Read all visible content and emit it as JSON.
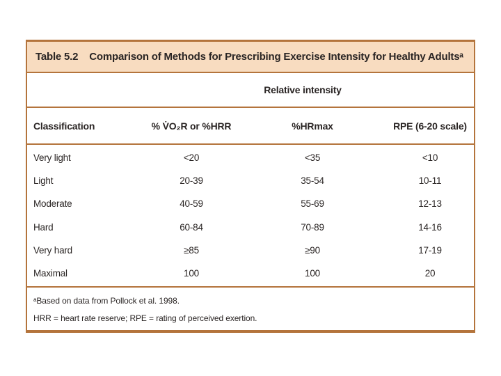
{
  "page": {
    "background": "#ffffff"
  },
  "table": {
    "title_label": "Table 5.2",
    "title_text": "Comparison of Methods for Prescribing Exercise Intensity for Healthy Adultsᵃ",
    "relative_intensity_header": "Relative intensity",
    "columns": [
      "Classification",
      "% V̇O₂R or %HRR",
      "%HRmax",
      "RPE (6-20 scale)"
    ],
    "rows": [
      {
        "classification": "Very light",
        "vo2r_hrr": "<20",
        "hrmax": "<35",
        "rpe": "<10"
      },
      {
        "classification": "Light",
        "vo2r_hrr": "20-39",
        "hrmax": "35-54",
        "rpe": "10-11"
      },
      {
        "classification": "Moderate",
        "vo2r_hrr": "40-59",
        "hrmax": "55-69",
        "rpe": "12-13"
      },
      {
        "classification": "Hard",
        "vo2r_hrr": "60-84",
        "hrmax": "70-89",
        "rpe": "14-16"
      },
      {
        "classification": "Very hard",
        "vo2r_hrr": "≥85",
        "hrmax": "≥90",
        "rpe": "17-19"
      },
      {
        "classification": "Maximal",
        "vo2r_hrr": "100",
        "hrmax": "100",
        "rpe": "20"
      }
    ],
    "footnotes": [
      "ᵃBased on data from Pollock et al. 1998.",
      "HRR = heart rate reserve; RPE = rating of perceived exertion."
    ],
    "colors": {
      "border": "#b4743c",
      "header_fill": "#f8dcc0",
      "text": "#2a2524"
    }
  }
}
